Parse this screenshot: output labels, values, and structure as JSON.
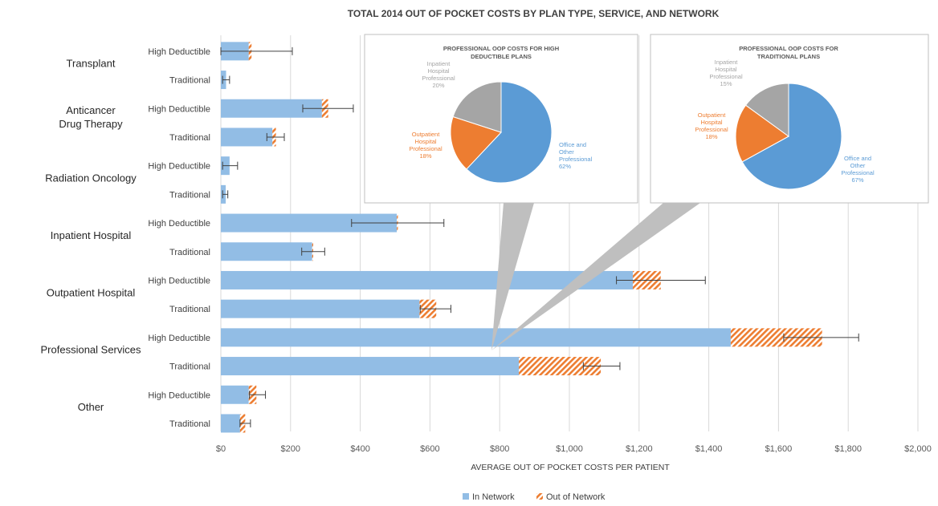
{
  "chart_data": {
    "type": "bar",
    "orientation": "horizontal",
    "stacked": true,
    "title": "TOTAL 2014 OUT OF POCKET COSTS BY PLAN TYPE, SERVICE, AND NETWORK",
    "xlabel": "AVERAGE OUT OF POCKET COSTS PER PATIENT",
    "xlim": [
      0,
      2000
    ],
    "x_ticks": [
      "$0",
      "$200",
      "$400",
      "$600",
      "$800",
      "$1,000",
      "$1,200",
      "$1,400",
      "$1,600",
      "$1,800",
      "$2,000"
    ],
    "grid": "vertical",
    "legend_position": "bottom",
    "legend": [
      "In Network",
      "Out of Network"
    ],
    "colors": {
      "in_network": "#92bde5",
      "out_of_network": "#ed7d31",
      "error_bar": "#404040"
    },
    "groups": [
      {
        "label": "Transplant",
        "bars": [
          {
            "plan": "High Deductible",
            "in_network": 80,
            "out_of_network": 8,
            "error": [
              0,
              205
            ]
          },
          {
            "plan": "Traditional",
            "in_network": 15,
            "out_of_network": 0,
            "error": [
              5,
              25
            ]
          }
        ]
      },
      {
        "label": "Anticancer Drug Therapy",
        "bars": [
          {
            "plan": "High Deductible",
            "in_network": 290,
            "out_of_network": 18,
            "error": [
              235,
              380
            ]
          },
          {
            "plan": "Traditional",
            "in_network": 148,
            "out_of_network": 10,
            "error": [
              132,
              182
            ]
          }
        ]
      },
      {
        "label": "Radiation Oncology",
        "bars": [
          {
            "plan": "High Deductible",
            "in_network": 25,
            "out_of_network": 0,
            "error": [
              5,
              48
            ]
          },
          {
            "plan": "Traditional",
            "in_network": 14,
            "out_of_network": 0,
            "error": [
              5,
              20
            ]
          }
        ]
      },
      {
        "label": "Inpatient Hospital",
        "bars": [
          {
            "plan": "High Deductible",
            "in_network": 505,
            "out_of_network": 3,
            "error": [
              375,
              640
            ]
          },
          {
            "plan": "Traditional",
            "in_network": 262,
            "out_of_network": 3,
            "error": [
              232,
              298
            ]
          }
        ]
      },
      {
        "label": "Outpatient Hospital",
        "bars": [
          {
            "plan": "High Deductible",
            "in_network": 1182,
            "out_of_network": 80,
            "error": [
              1135,
              1390
            ]
          },
          {
            "plan": "Traditional",
            "in_network": 570,
            "out_of_network": 48,
            "error": [
              572,
              660
            ]
          }
        ]
      },
      {
        "label": "Professional Services",
        "bars": [
          {
            "plan": "High Deductible",
            "in_network": 1463,
            "out_of_network": 262,
            "error": [
              1615,
              1830
            ]
          },
          {
            "plan": "Traditional",
            "in_network": 855,
            "out_of_network": 235,
            "error": [
              1040,
              1145
            ]
          }
        ]
      },
      {
        "label": "Other",
        "bars": [
          {
            "plan": "High Deductible",
            "in_network": 80,
            "out_of_network": 22,
            "error": [
              82,
              128
            ]
          },
          {
            "plan": "Traditional",
            "in_network": 55,
            "out_of_network": 15,
            "error": [
              55,
              85
            ]
          }
        ]
      }
    ],
    "insets": [
      {
        "type": "pie",
        "title": "PROFESSIONAL OOP COSTS FOR HIGH DEDUCTIBLE PLANS",
        "slices": [
          {
            "label": "Office and Other Professional",
            "value": 62,
            "value_label": "62%",
            "color": "#5b9bd5"
          },
          {
            "label": "Outpatient Hospital Professional",
            "value": 18,
            "value_label": "18%",
            "color": "#ed7d31"
          },
          {
            "label": "Inpatient Hospital Professional",
            "value": 20,
            "value_label": "20%",
            "color": "#a5a5a5"
          }
        ]
      },
      {
        "type": "pie",
        "title": "PROFESSIONAL OOP COSTS FOR TRADITIONAL PLANS",
        "slices": [
          {
            "label": "Office and Other Professional",
            "value": 67,
            "value_label": "67%",
            "color": "#5b9bd5"
          },
          {
            "label": "Outpatient Hospital Professional",
            "value": 18,
            "value_label": "18%",
            "color": "#ed7d31"
          },
          {
            "label": "Inpatient Hospital Professional",
            "value": 15,
            "value_label": "15%",
            "color": "#a5a5a5"
          }
        ]
      }
    ]
  }
}
